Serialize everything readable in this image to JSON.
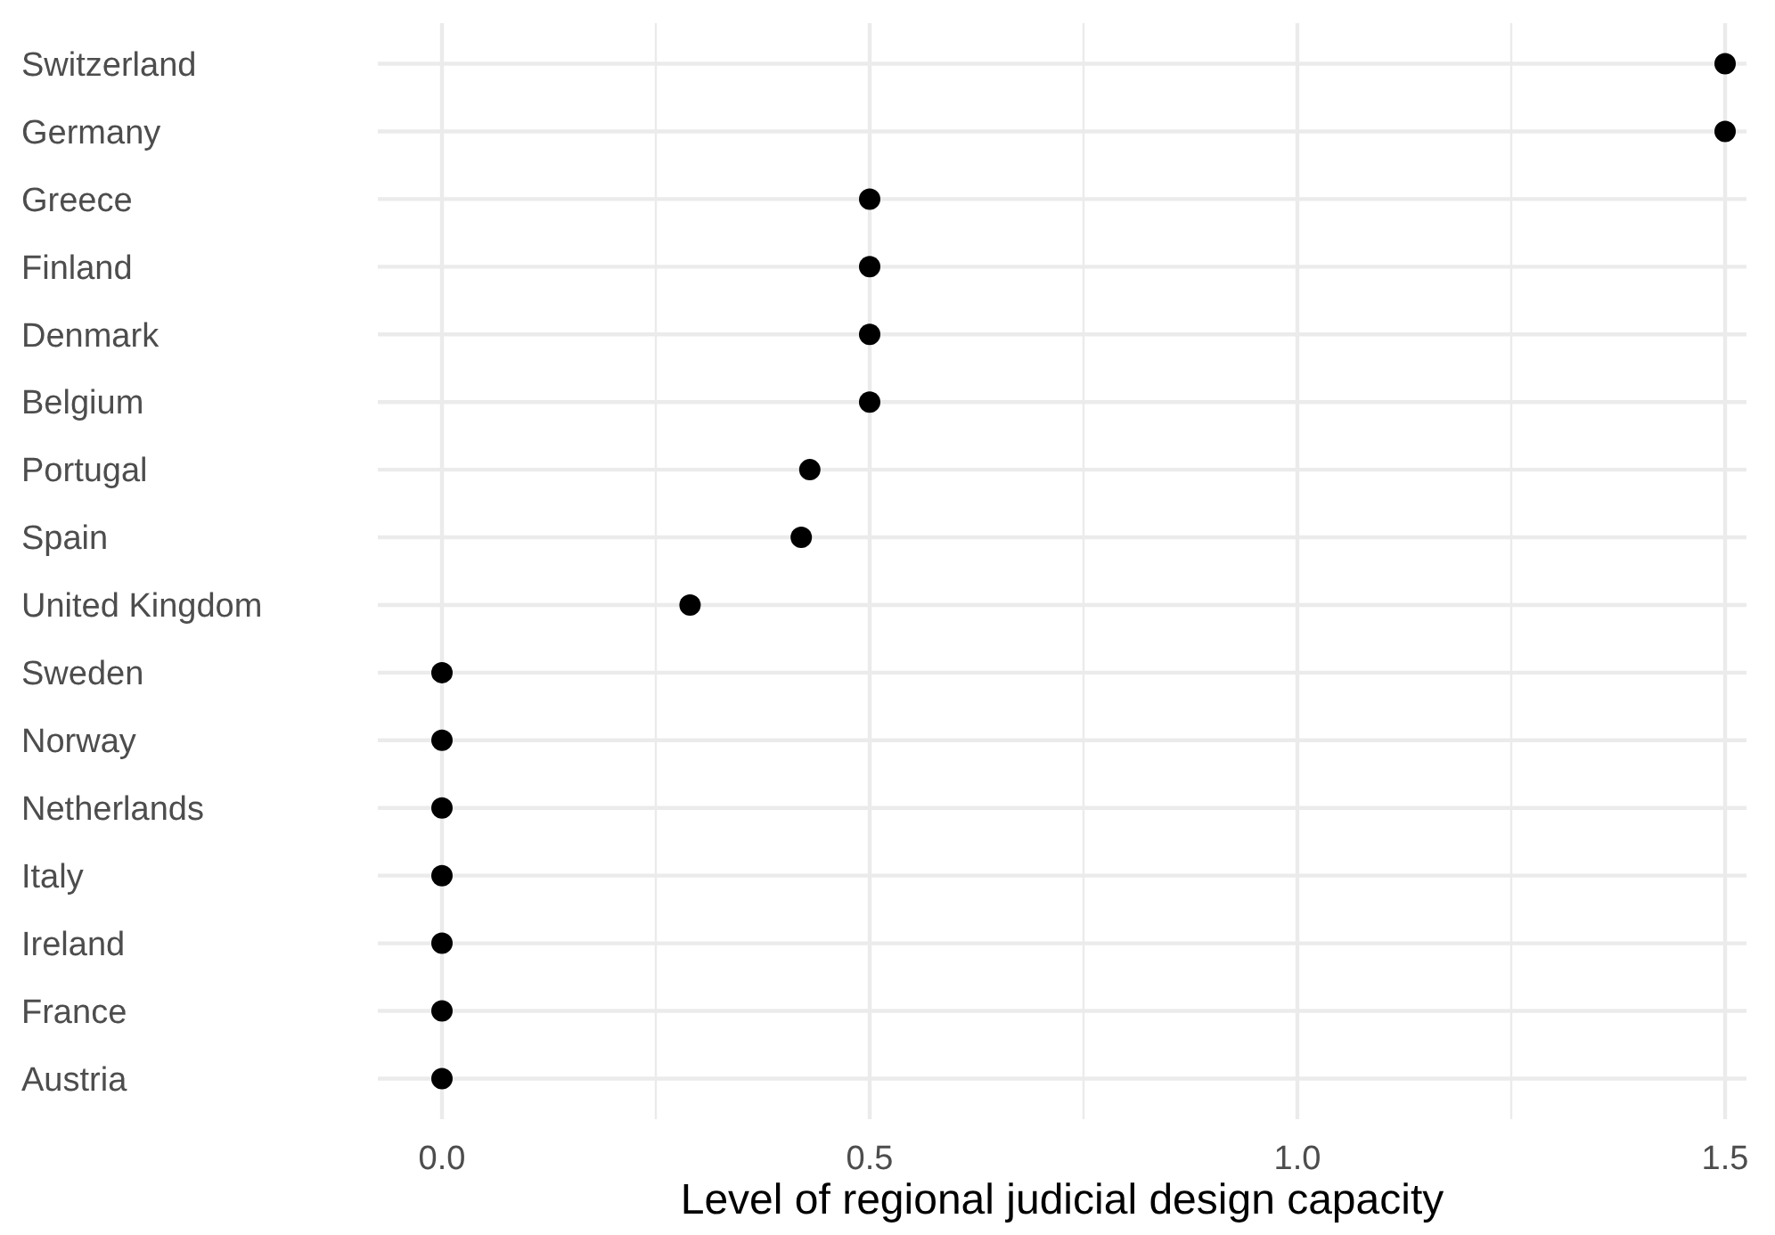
{
  "chart_data": {
    "type": "scatter",
    "orientation": "horizontal",
    "xlabel": "Level of regional judicial design capacity",
    "categories": [
      "Switzerland",
      "Germany",
      "Greece",
      "Finland",
      "Denmark",
      "Belgium",
      "Portugal",
      "Spain",
      "United Kingdom",
      "Sweden",
      "Norway",
      "Netherlands",
      "Italy",
      "Ireland",
      "France",
      "Austria"
    ],
    "values": [
      1.5,
      1.5,
      0.5,
      0.5,
      0.5,
      0.5,
      0.43,
      0.42,
      0.29,
      0,
      0,
      0,
      0,
      0,
      0,
      0
    ],
    "color": "#000000",
    "marker": "circle",
    "grid": true,
    "xlim": [
      -0.075,
      1.525
    ],
    "xticks": [
      {
        "value": 0,
        "label": "0.0"
      },
      {
        "value": 0.25,
        "label": null
      },
      0.5,
      {
        "value": 0.75,
        "label": null
      },
      {
        "value": 1,
        "label": "1.0"
      },
      {
        "value": 1.25,
        "label": null
      },
      1.5
    ]
  }
}
